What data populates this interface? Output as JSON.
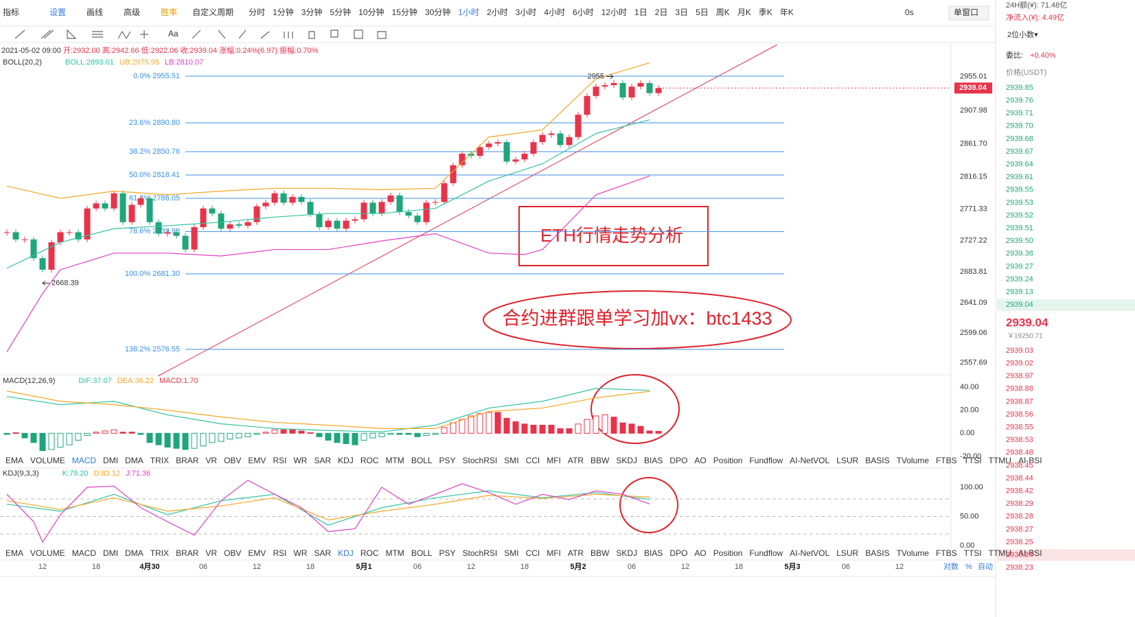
{
  "toolbar": {
    "left": [
      "指标",
      "设置",
      "画线",
      "高级",
      "胜率"
    ],
    "custom": "自定义周期",
    "periods": [
      "分时",
      "1分钟",
      "3分钟",
      "5分钟",
      "10分钟",
      "15分钟",
      "30分钟",
      "1小时",
      "2小时",
      "3小时",
      "4小时",
      "6小时",
      "12小时",
      "1日",
      "2日",
      "3日",
      "5日",
      "周K",
      "月K",
      "季K",
      "年K"
    ],
    "active_period": "1小时",
    "right": [
      "0s",
      "单窗口"
    ]
  },
  "indicators": [
    "EMA",
    "VOLUME",
    "MACD",
    "DMI",
    "DMA",
    "TRIX",
    "BRAR",
    "VR",
    "OBV",
    "EMV",
    "RSI",
    "WR",
    "SAR",
    "KDJ",
    "ROC",
    "MTM",
    "BOLL",
    "PSY",
    "StochRSI",
    "SMI",
    "CCI",
    "MFI",
    "ATR",
    "BBW",
    "SKDJ",
    "BIAS",
    "DPO",
    "AO",
    "Position",
    "Fundflow",
    "AI-NetVOL",
    "LSUR",
    "BASIS",
    "TVolume",
    "FTBS",
    "TTSI",
    "TTMU",
    "AI-BSI"
  ],
  "xlabels": [
    "12",
    "18",
    "4月30",
    "06",
    "12",
    "18",
    "5月1",
    "06",
    "12",
    "18",
    "5月2",
    "06",
    "12",
    "18",
    "5月3",
    "06",
    "12"
  ],
  "axis_modes": [
    "对数",
    "%",
    "自动"
  ],
  "annotations": [
    "ETH行情走势分析",
    "合约进群跟单学习加vx：btc1433"
  ],
  "chart_data": [
    {
      "type": "candlestick",
      "info": [
        "2021-05-02 09:00",
        "开:2932.00",
        "高:2942.66",
        "低:2922.06",
        "收:2939.04",
        "涨幅:0.24%(6.97)",
        "振幅:0.70%"
      ],
      "legend": [
        "BOLL(20,2)",
        "BOLL:2893.01",
        "UB:2975.95",
        "LB:2810.07"
      ],
      "values": [
        2739,
        2729,
        2729,
        2703,
        2687,
        2725,
        2739,
        2739,
        2729,
        2772,
        2779,
        2772,
        2793,
        2753,
        2777,
        2786,
        2753,
        2737,
        2739,
        2734,
        2715,
        2746,
        2772,
        2765,
        2744,
        2750,
        2748,
        2753,
        2775,
        2780,
        2793,
        2780,
        2788,
        2781,
        2764,
        2746,
        2755,
        2744,
        2755,
        2757,
        2780,
        2765,
        2781,
        2790,
        2767,
        2762,
        2753,
        2780,
        2781,
        2807,
        2832,
        2848,
        2845,
        2857,
        2862,
        2864,
        2837,
        2840,
        2848,
        2864,
        2874,
        2876,
        2860,
        2871,
        2902,
        2928,
        2941,
        2943,
        2946,
        2926,
        2941,
        2946,
        2932,
        2939.04
      ],
      "up_color": "#e8334a",
      "down_color": "#1fa67a",
      "lines": [
        {
          "color": "#f5a623",
          "x": [
            0,
            6,
            12,
            18,
            24,
            30,
            36,
            42,
            48,
            54,
            60,
            66,
            72
          ],
          "values": [
            2803,
            2786,
            2796,
            2791,
            2796,
            2800,
            2800,
            2798,
            2800,
            2871,
            2881,
            2952,
            2974
          ]
        },
        {
          "color": "#2ec4a0",
          "x": [
            0,
            6,
            12,
            18,
            24,
            30,
            36,
            42,
            48,
            54,
            60,
            66,
            72
          ],
          "values": [
            2689,
            2725,
            2744,
            2748,
            2753,
            2760,
            2765,
            2765,
            2772,
            2810,
            2834,
            2876,
            2895
          ]
        },
        {
          "color": "#e040c0",
          "x": [
            0,
            4,
            6,
            12,
            18,
            24,
            30,
            36,
            42,
            48,
            54,
            58,
            60,
            66,
            72
          ],
          "values": [
            2573,
            2654,
            2687,
            2710,
            2710,
            2706,
            2715,
            2715,
            2727,
            2737,
            2710,
            2708,
            2715,
            2791,
            2817
          ]
        }
      ],
      "ylim": [
        2542.25,
        2999.3
      ],
      "yticks": [
        2955.01,
        2907.98,
        {
          "value": 2861.7,
          "label": "2861.70"
        },
        2816.15,
        2771.33,
        2727.22,
        2683.81,
        2641.09,
        2599.06,
        2557.69
      ],
      "levels": [
        {
          "value": 2955.51,
          "label": "0.0% 2955.51"
        },
        {
          "value": 2890.8,
          "label": "23.6% 2890.80"
        },
        {
          "value": 2850.76,
          "label": "38.2% 2850.76"
        },
        {
          "value": 2818.41,
          "label": "50.0% 2818.41"
        },
        {
          "value": 2786.05,
          "label": "61.8% 2786.05"
        },
        {
          "value": 2739.98,
          "label": "78.6% 2739.98"
        },
        {
          "value": 2681.3,
          "label": "100.0% 2681.30"
        },
        {
          "value": 2576.55,
          "label": "138.2% 2576.55"
        }
      ],
      "level_color": "#3b8fe0",
      "high": 2955,
      "low": 2668.39,
      "last_price": 2939.04
    },
    {
      "type": "macd",
      "legend": [
        "MACD(12,26,9)",
        "DIF:37.07",
        "DEA:36.22",
        "MACD:1.70"
      ],
      "values": [
        -1,
        0.5,
        -4,
        -8,
        -15,
        -14,
        -12,
        -10,
        -6,
        -2,
        1,
        2,
        3,
        1,
        1,
        -1,
        -8,
        -10,
        -12,
        -13,
        -14,
        -13,
        -11,
        -8,
        -7,
        -5,
        -4,
        -3,
        -1,
        1,
        3,
        3,
        3,
        2,
        0.5,
        -3,
        -6,
        -8,
        -9,
        -10,
        -6,
        -4,
        -3,
        -1,
        -1,
        -1,
        -3,
        -2,
        -1,
        5,
        9,
        12,
        15,
        17,
        18,
        18,
        13,
        10,
        8,
        7,
        7,
        7,
        4,
        4,
        8,
        12,
        15,
        16,
        14,
        9,
        8,
        6,
        2,
        1.7
      ],
      "up_color": "#e8334a",
      "down_color": "#1fa67a",
      "lines": [
        {
          "color": "#2ec4a0",
          "x": [
            0,
            6,
            12,
            18,
            24,
            30,
            36,
            42,
            48,
            54,
            60,
            66,
            72
          ],
          "values": [
            31.8,
            24.7,
            27.6,
            15.9,
            8.2,
            4.1,
            2.4,
            1.2,
            7,
            21.8,
            27.6,
            38.8,
            37.07
          ]
        },
        {
          "color": "#f5a623",
          "x": [
            0,
            6,
            12,
            18,
            24,
            30,
            36,
            42,
            48,
            54,
            60,
            66,
            72
          ],
          "values": [
            36.5,
            27.6,
            24.7,
            20,
            14.1,
            9.4,
            7,
            4.1,
            4.1,
            18.8,
            21.8,
            30.6,
            36.22
          ]
        }
      ],
      "ylim": [
        -18.2,
        49.4
      ],
      "yticks": [
        {
          "value": 40,
          "label": "40.00"
        },
        {
          "value": 20,
          "label": "20.00"
        },
        {
          "value": 0,
          "label": "0.00"
        },
        {
          "value": -20,
          "label": "-20.00"
        }
      ]
    },
    {
      "type": "line",
      "legend": [
        "KDJ(9,3,3)",
        "K:79.20",
        "D:83.12",
        "J:71.36"
      ],
      "lines": [
        {
          "color": "#2ec4a0",
          "x": [
            0,
            6,
            12,
            18,
            24,
            30,
            36,
            42,
            48,
            54,
            60,
            66,
            72
          ],
          "values": [
            71,
            59,
            88,
            53,
            77,
            88,
            35,
            65,
            82,
            94,
            82,
            91,
            79.2
          ]
        },
        {
          "color": "#f5a623",
          "x": [
            0,
            6,
            12,
            18,
            24,
            30,
            36,
            42,
            48,
            54,
            60,
            66,
            72
          ],
          "values": [
            77,
            62,
            82,
            59,
            68,
            82,
            44,
            59,
            71,
            86,
            81,
            88,
            83.12
          ]
        },
        {
          "color": "#e040c0",
          "x": [
            0,
            3,
            4,
            6,
            9,
            12,
            15,
            18,
            21,
            24,
            27,
            30,
            33,
            36,
            39,
            42,
            45,
            48,
            51,
            54,
            57,
            60,
            63,
            66,
            69,
            72
          ],
          "values": [
            88,
            41,
            6,
            53,
            100,
            102,
            65,
            41,
            18,
            77,
            112,
            88,
            65,
            24,
            29,
            100,
            71,
            88,
            106,
            91,
            71,
            88,
            79,
            94,
            88,
            71.36
          ]
        }
      ],
      "guides": [
        80,
        50,
        20
      ],
      "ylim": [
        -5.9,
        131.8
      ],
      "yticks": [
        {
          "value": 100,
          "label": "100.00"
        },
        {
          "value": 50,
          "label": "50.00"
        },
        {
          "value": 0,
          "label": "0.00"
        }
      ]
    }
  ],
  "side": {
    "header": [
      "24H额(¥): 71.48亿",
      "净流入(¥): 4.49亿",
      "2位小数▾"
    ],
    "ratio_label": "委比:",
    "ratio": "+0.40%",
    "price_head": "价格(USDT)",
    "asks": [
      "2939.85",
      "2939.76",
      "2939.71",
      "2939.70",
      "2939.68",
      "2939.67",
      "2939.64",
      "2939.61",
      "2939.55",
      "2939.53",
      "2939.52",
      "2939.51",
      "2939.50",
      "2939.38",
      "2939.27",
      "2939.24",
      "2939.13",
      "2939.04"
    ],
    "price": "2939.04",
    "cny": "￥19250.71",
    "bids": [
      "2939.03",
      "2939.02",
      "2938.97",
      "2938.88",
      "2938.87",
      "2938.56",
      "2938.55",
      "2938.53",
      "2938.48",
      "2938.45",
      "2938.44",
      "2938.42",
      "2938.29",
      "2938.28",
      "2938.27",
      "2938.25",
      "2938.24",
      "2938.23"
    ]
  }
}
